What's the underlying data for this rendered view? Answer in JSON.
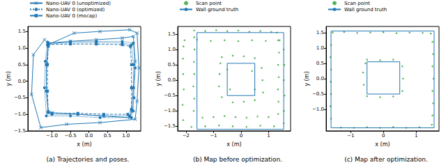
{
  "chart_data": [
    {
      "type": "line",
      "title": "(a) Trajectories and poses.",
      "x_label": "x (m)",
      "y_label": "y (m)",
      "xlim": [
        -1.65,
        1.4
      ],
      "ylim": [
        -1.5,
        1.65
      ],
      "xticks": [
        {
          "value": -1,
          "label": "−1.0"
        },
        {
          "value": -0.5,
          "label": "−0.5"
        },
        {
          "value": 0,
          "label": "0.0"
        },
        {
          "value": 0.5,
          "label": "0.5"
        },
        {
          "value": 1,
          "label": "1.0"
        }
      ],
      "yticks": [
        {
          "value": -1.5,
          "label": "−1.5"
        },
        {
          "value": -1,
          "label": "−1.0"
        },
        {
          "value": -0.5,
          "label": "−0.5"
        },
        {
          "value": 0,
          "label": "0.0"
        },
        {
          "value": 0.5,
          "label": "0.5"
        },
        {
          "value": 1,
          "label": "1.0"
        },
        1.5
      ],
      "grid": false,
      "legend": "upper left",
      "series": [
        {
          "name": "Nano-UAV 0 (unoptimized)",
          "color": "#1f77b4",
          "marker": "x",
          "line_style": "solid",
          "values": [
            [
              -1.1,
              1.15
            ],
            [
              -0.5,
              1.2
            ],
            [
              0.2,
              1.25
            ],
            [
              0.9,
              1.3
            ],
            [
              1.2,
              1.35
            ],
            [
              1.25,
              0.6
            ],
            [
              1.2,
              -0.2
            ],
            [
              1.15,
              -0.9
            ],
            [
              1.1,
              -1.1
            ],
            [
              0.4,
              -1.05
            ],
            [
              -0.3,
              -1.0
            ],
            [
              -1.0,
              -0.95
            ],
            [
              -1.1,
              -0.95
            ],
            [
              -1.15,
              -0.3
            ],
            [
              -1.15,
              0.5
            ],
            [
              -1.1,
              1.1
            ],
            [
              -0.4,
              1.45
            ],
            [
              0.3,
              1.5
            ],
            [
              1.1,
              1.55
            ],
            [
              1.3,
              1.45
            ],
            [
              1.35,
              0.4
            ],
            [
              1.3,
              -0.6
            ],
            [
              1.25,
              -1.15
            ],
            [
              0.3,
              -1.25
            ],
            [
              -0.6,
              -1.3
            ],
            [
              -1.3,
              -1.4
            ],
            [
              -1.55,
              -0.4
            ],
            [
              -1.5,
              0.8
            ],
            [
              -1.2,
              1.25
            ]
          ]
        },
        {
          "name": "Nano-UAV 0 (optimized)",
          "color": "#1f77b4",
          "marker": "circle",
          "line_style": "dotted",
          "values": [
            [
              -1.1,
              1.15
            ],
            [
              -0.5,
              1.15
            ],
            [
              0.2,
              1.17
            ],
            [
              0.9,
              1.15
            ],
            [
              1.15,
              1.1
            ],
            [
              1.2,
              0.5
            ],
            [
              1.2,
              -0.2
            ],
            [
              1.2,
              -0.9
            ],
            [
              1.1,
              -1.05
            ],
            [
              0.4,
              -1.05
            ],
            [
              -0.3,
              -1.0
            ],
            [
              -1.0,
              -1.0
            ],
            [
              -1.1,
              -0.95
            ],
            [
              -1.15,
              -0.3
            ],
            [
              -1.15,
              0.5
            ],
            [
              -1.1,
              1.1
            ],
            [
              -0.5,
              1.2
            ],
            [
              0.2,
              1.2
            ],
            [
              0.9,
              1.2
            ],
            [
              1.2,
              1.15
            ],
            [
              1.25,
              0.4
            ],
            [
              1.22,
              -0.5
            ],
            [
              1.15,
              -1.1
            ],
            [
              0.3,
              -1.1
            ],
            [
              -0.5,
              -1.05
            ],
            [
              -1.15,
              -1.05
            ],
            [
              -1.2,
              -0.2
            ],
            [
              -1.18,
              0.6
            ],
            [
              -1.12,
              1.18
            ]
          ]
        },
        {
          "name": "Nano-UAV 0 (mocap)",
          "color": "#1f77b4",
          "marker": "square",
          "line_style": "dashed",
          "values": [
            [
              -1.12,
              1.1
            ],
            [
              -0.5,
              1.12
            ],
            [
              0.2,
              1.12
            ],
            [
              0.9,
              1.1
            ],
            [
              1.12,
              1.05
            ],
            [
              1.15,
              0.5
            ],
            [
              1.15,
              -0.2
            ],
            [
              1.15,
              -0.85
            ],
            [
              1.05,
              -1.0
            ],
            [
              0.4,
              -1.0
            ],
            [
              -0.3,
              -0.97
            ],
            [
              -1.0,
              -0.97
            ],
            [
              -1.1,
              -0.92
            ],
            [
              -1.12,
              -0.3
            ],
            [
              -1.12,
              0.5
            ],
            [
              -1.1,
              1.05
            ]
          ]
        }
      ]
    },
    {
      "type": "scatter",
      "title": "(b) Map before optimization.",
      "x_label": "x (m)",
      "y_label": "y (m)",
      "xlim": [
        -2.3,
        1.8
      ],
      "ylim": [
        -1.65,
        1.75
      ],
      "xticks": [
        {
          "value": -2,
          "label": "−2"
        },
        {
          "value": -1,
          "label": "−1"
        },
        0,
        1
      ],
      "yticks": [
        {
          "value": -1.5,
          "label": "−1.5"
        },
        {
          "value": -1,
          "label": "−1.0"
        },
        {
          "value": -0.5,
          "label": "−0.5"
        },
        {
          "value": 0,
          "label": "0.0"
        },
        {
          "value": 0.5,
          "label": "0.5"
        },
        {
          "value": 1,
          "label": "1.0"
        },
        1.5
      ],
      "grid": false,
      "legend": "upper left",
      "series": [
        {
          "name": "Scan point",
          "type": "scatter",
          "color": "#2ca02c",
          "marker": "circle",
          "values": [
            [
              -1.7,
              1.62
            ],
            [
              -1.3,
              1.6
            ],
            [
              -0.9,
              1.63
            ],
            [
              -0.5,
              1.6
            ],
            [
              -0.1,
              1.62
            ],
            [
              0.3,
              1.58
            ],
            [
              0.7,
              1.6
            ],
            [
              1.1,
              1.57
            ],
            [
              1.3,
              1.55
            ],
            [
              1.35,
              1.3
            ],
            [
              1.38,
              0.9
            ],
            [
              1.35,
              0.5
            ],
            [
              1.37,
              0.1
            ],
            [
              1.34,
              -0.3
            ],
            [
              1.36,
              -0.7
            ],
            [
              1.35,
              -1.1
            ],
            [
              1.0,
              -1.2
            ],
            [
              0.6,
              -1.18
            ],
            [
              0.2,
              -1.22
            ],
            [
              -0.2,
              -1.2
            ],
            [
              -0.6,
              -1.17
            ],
            [
              -1.0,
              -1.2
            ],
            [
              -1.4,
              -1.22
            ],
            [
              -1.72,
              -1.0
            ],
            [
              -1.7,
              -0.6
            ],
            [
              -1.73,
              -0.2
            ],
            [
              -1.7,
              0.2
            ],
            [
              -1.71,
              0.6
            ],
            [
              -1.69,
              1.0
            ],
            [
              -1.7,
              1.4
            ],
            [
              -2.05,
              1.3
            ],
            [
              -1.6,
              1.32
            ],
            [
              -1.1,
              1.28
            ],
            [
              -0.6,
              1.3
            ],
            [
              -0.1,
              1.27
            ],
            [
              0.4,
              1.3
            ],
            [
              0.9,
              1.28
            ],
            [
              1.4,
              1.3
            ],
            [
              1.55,
              1.0
            ],
            [
              1.57,
              0.5
            ],
            [
              1.55,
              0.0
            ],
            [
              1.58,
              -0.5
            ],
            [
              1.56,
              -1.0
            ],
            [
              1.55,
              -1.4
            ],
            [
              1.2,
              -1.5
            ],
            [
              0.7,
              -1.48
            ],
            [
              0.2,
              -1.52
            ],
            [
              -0.3,
              -1.5
            ],
            [
              -0.8,
              -1.47
            ],
            [
              -1.3,
              -1.5
            ],
            [
              -1.8,
              -1.52
            ],
            [
              -2.1,
              -1.3
            ],
            [
              -2.12,
              -0.8
            ],
            [
              -2.08,
              -0.3
            ],
            [
              -2.1,
              0.2
            ],
            [
              -2.11,
              0.7
            ],
            [
              -2.09,
              1.1
            ],
            [
              -0.7,
              0.75
            ],
            [
              -0.3,
              0.8
            ],
            [
              0.1,
              0.78
            ],
            [
              0.5,
              0.72
            ],
            [
              0.75,
              0.4
            ],
            [
              0.78,
              0.0
            ],
            [
              0.8,
              -0.4
            ],
            [
              0.5,
              -0.65
            ],
            [
              0.1,
              -0.7
            ],
            [
              -0.3,
              -0.72
            ],
            [
              -0.7,
              -0.55
            ],
            [
              -0.8,
              -0.2
            ],
            [
              -0.78,
              0.2
            ],
            [
              -0.75,
              0.55
            ],
            [
              -0.5,
              0.35
            ],
            [
              0.4,
              0.3
            ],
            [
              0.5,
              -0.3
            ],
            [
              -0.4,
              -0.3
            ]
          ]
        },
        {
          "name": "Wall ground truth",
          "type": "line",
          "color": "#1f77b4",
          "line_style": "solid",
          "values": [
            [
              -1.6,
              -1.6
            ],
            [
              1.55,
              -1.6
            ],
            [
              1.55,
              1.55
            ],
            [
              -1.6,
              1.55
            ],
            [
              -1.6,
              -1.6
            ],
            null,
            [
              -0.5,
              -0.5
            ],
            [
              0.5,
              -0.5
            ],
            [
              0.5,
              0.55
            ],
            [
              -0.5,
              0.55
            ],
            [
              -0.5,
              -0.5
            ]
          ]
        }
      ]
    },
    {
      "type": "scatter",
      "title": "(c) Map after optimization.",
      "x_label": "x (m)",
      "y_label": "y (m)",
      "xlim": [
        -1.75,
        1.7
      ],
      "ylim": [
        -1.7,
        1.7
      ],
      "xticks": [
        {
          "value": -1,
          "label": "−1"
        },
        0,
        1
      ],
      "yticks": [
        {
          "value": -1,
          "label": "−1.0"
        },
        {
          "value": -0.5,
          "label": "−0.5"
        },
        {
          "value": 0,
          "label": "0.0"
        },
        {
          "value": 0.5,
          "label": "0.5"
        },
        {
          "value": 1,
          "label": "1.0"
        },
        1.5
      ],
      "grid": false,
      "legend": "upper left",
      "series": [
        {
          "name": "Scan point",
          "type": "scatter",
          "color": "#2ca02c",
          "marker": "circle",
          "values": [
            [
              -1.55,
              1.5
            ],
            [
              -1.2,
              1.52
            ],
            [
              -0.8,
              1.49
            ],
            [
              -0.4,
              1.5
            ],
            [
              0.0,
              1.51
            ],
            [
              0.4,
              1.48
            ],
            [
              0.8,
              1.5
            ],
            [
              1.2,
              1.49
            ],
            [
              1.45,
              1.47
            ],
            [
              1.5,
              1.2
            ],
            [
              1.52,
              0.8
            ],
            [
              1.5,
              0.4
            ],
            [
              1.53,
              0.0
            ],
            [
              1.5,
              -0.4
            ],
            [
              1.52,
              -0.8
            ],
            [
              1.5,
              -1.2
            ],
            [
              1.48,
              -1.5
            ],
            [
              1.1,
              -1.58
            ],
            [
              0.7,
              -1.6
            ],
            [
              0.3,
              -1.57
            ],
            [
              -0.1,
              -1.6
            ],
            [
              -0.5,
              -1.58
            ],
            [
              -0.9,
              -1.6
            ],
            [
              -1.3,
              -1.59
            ],
            [
              -1.6,
              -1.3
            ],
            [
              -1.62,
              -0.9
            ],
            [
              -1.6,
              -0.5
            ],
            [
              -1.61,
              -0.1
            ],
            [
              -1.6,
              0.3
            ],
            [
              -1.62,
              0.7
            ],
            [
              -1.6,
              1.1
            ],
            [
              -0.5,
              0.62
            ],
            [
              -0.1,
              0.6
            ],
            [
              0.3,
              0.62
            ],
            [
              0.58,
              0.4
            ],
            [
              0.6,
              0.0
            ],
            [
              0.58,
              -0.4
            ],
            [
              0.3,
              -0.58
            ],
            [
              -0.1,
              -0.6
            ],
            [
              -0.5,
              -0.57
            ],
            [
              -0.6,
              -0.2
            ],
            [
              -0.62,
              0.2
            ],
            [
              -0.55,
              0.5
            ]
          ]
        },
        {
          "name": "Wall ground truth",
          "type": "line",
          "color": "#1f77b4",
          "line_style": "solid",
          "values": [
            [
              -1.6,
              -1.6
            ],
            [
              1.55,
              -1.6
            ],
            [
              1.55,
              1.55
            ],
            [
              -1.6,
              1.55
            ],
            [
              -1.6,
              -1.6
            ],
            null,
            [
              -0.5,
              -0.5
            ],
            [
              0.5,
              -0.5
            ],
            [
              0.5,
              0.55
            ],
            [
              -0.5,
              0.55
            ],
            [
              -0.5,
              -0.5
            ]
          ]
        }
      ]
    }
  ]
}
